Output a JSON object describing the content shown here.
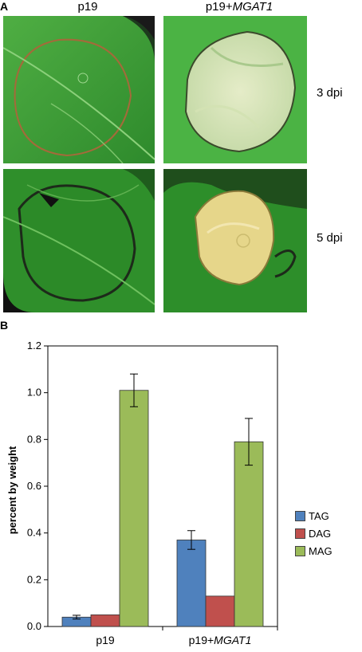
{
  "panel_a": {
    "letter": "A",
    "col_labels": [
      {
        "text": "p19",
        "italic_suffix": ""
      },
      {
        "text": "p19+",
        "italic_suffix": "MGAT1"
      }
    ],
    "row_labels": [
      "3 dpi",
      "5 dpi"
    ]
  },
  "panel_b": {
    "letter": "B"
  },
  "colors": {
    "TAG": "#4f81bd",
    "DAG": "#c0504d",
    "MAG": "#9bbb59"
  },
  "chart_data": {
    "type": "bar",
    "categories": [
      "p19",
      "p19+MGAT1"
    ],
    "category_labels": [
      {
        "text": "p19",
        "italic_suffix": ""
      },
      {
        "text": "p19+",
        "italic_suffix": "MGAT1"
      }
    ],
    "series": [
      {
        "name": "TAG",
        "values": [
          0.04,
          0.37
        ],
        "errors": [
          0.008,
          0.04
        ]
      },
      {
        "name": "DAG",
        "values": [
          0.05,
          0.13
        ],
        "errors": [
          null,
          null
        ]
      },
      {
        "name": "MAG",
        "values": [
          1.01,
          0.79
        ],
        "errors": [
          0.07,
          0.1
        ]
      }
    ],
    "title": "",
    "xlabel": "",
    "ylabel": "percent  by weight",
    "ylim": [
      0,
      1.2
    ],
    "yticks": [
      "0.0",
      "0.2",
      "0.4",
      "0.6",
      "0.8",
      "1.0",
      "1.2"
    ],
    "legend": "right",
    "grid": false
  }
}
